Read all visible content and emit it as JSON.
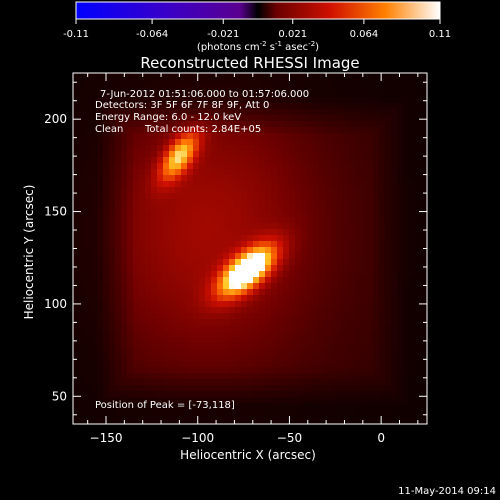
{
  "colorbar": {
    "tick_labels": [
      "-0.11",
      "-0.064",
      "-0.021",
      "0.021",
      "0.064",
      "0.11"
    ],
    "tick_values": [
      -0.11,
      -0.064,
      -0.021,
      0.021,
      0.064,
      0.11
    ],
    "range": [
      -0.11,
      0.11
    ],
    "units_line": "(photons cm",
    "units_exp1": "-2",
    "units_mid": " s",
    "units_exp2": "-1",
    "units_mid2": " asec",
    "units_exp3": "-2",
    "units_close": ")"
  },
  "chart_data": {
    "type": "heatmap",
    "title": "Reconstructed RHESSI Image",
    "xlabel": "Heliocentric X (arcsec)",
    "ylabel": "Heliocentric Y (arcsec)",
    "xlim": [
      -168,
      25
    ],
    "ylim": [
      35,
      225
    ],
    "x_ticks": [
      -150,
      -100,
      -50,
      0
    ],
    "x_tick_labels": [
      "−150",
      "−100",
      "−50",
      "0"
    ],
    "y_ticks": [
      50,
      100,
      150,
      200
    ],
    "y_tick_labels": [
      "50",
      "100",
      "150",
      "200"
    ],
    "colormap_range": [
      -0.11,
      0.11
    ],
    "sources": [
      {
        "x": -73,
        "y": 118,
        "peak": 0.11,
        "sx": 13,
        "sy": 6,
        "angle": 40
      },
      {
        "x": -110,
        "y": 180,
        "peak": 0.07,
        "sx": 11,
        "sy": 5,
        "angle": 55
      },
      {
        "x": -95,
        "y": 140,
        "peak": 0.03,
        "sx": 45,
        "sy": 55,
        "angle": 0
      }
    ],
    "annotations": {
      "time_range": "7-Jun-2012 01:51:06.000 to 01:57:06.000",
      "detectors": "Detectors: 3F 5F 6F 7F 8F 9F, Att 0",
      "energy": "Energy Range: 6.0 - 12.0 keV",
      "algorithm": "Clean",
      "counts": "Total counts: 2.84E+05",
      "peak": "Position of Peak = [-73,118]"
    }
  },
  "footer": {
    "date": "11-May-2014 09:14"
  }
}
